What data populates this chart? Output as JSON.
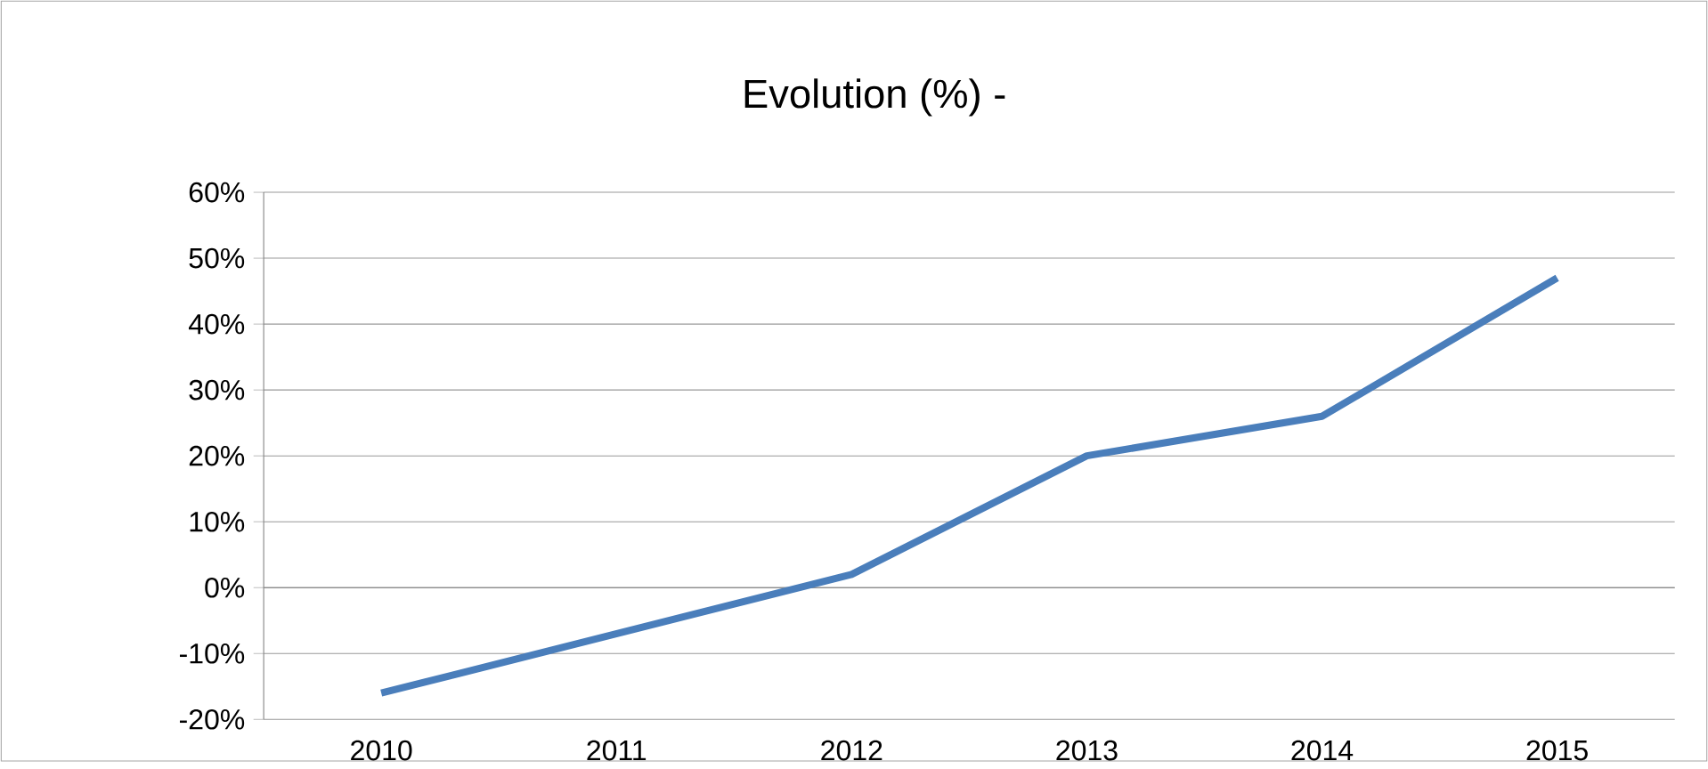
{
  "chart_data": {
    "type": "line",
    "title": "Evolution (%) -",
    "categories": [
      "2010",
      "2011",
      "2012",
      "2013",
      "2014",
      "2015"
    ],
    "series": [
      {
        "color": "#4a7ebb",
        "values": [
          -16,
          -7,
          2,
          20,
          26,
          47
        ]
      }
    ],
    "ylim": [
      -20,
      60
    ],
    "yticks": [
      {
        "value": -20,
        "label": "-20%"
      },
      {
        "value": -10,
        "label": "-10%"
      },
      {
        "value": 0,
        "label": "0%"
      },
      {
        "value": 10,
        "label": "10%"
      },
      {
        "value": 20,
        "label": "20%"
      },
      {
        "value": 30,
        "label": "30%"
      },
      {
        "value": 40,
        "label": "40%"
      },
      {
        "value": 50,
        "label": "50%"
      },
      {
        "value": 60,
        "label": "60%"
      }
    ],
    "grid": "y",
    "legend": false,
    "marker": "none",
    "line_style": "solid"
  }
}
